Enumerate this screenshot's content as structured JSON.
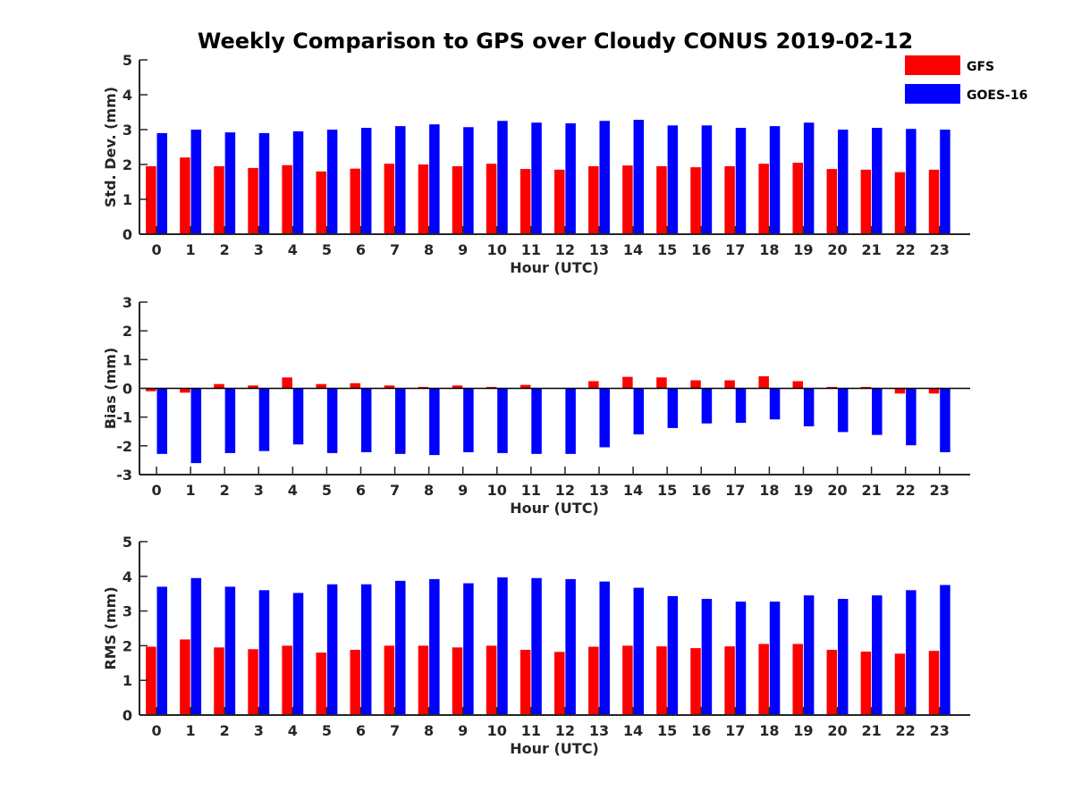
{
  "title": "Weekly Comparison to GPS over Cloudy CONUS 2019-02-12",
  "legend": [
    {
      "name": "GFS",
      "color": "#ff0000"
    },
    {
      "name": "GOES-16",
      "color": "#0000ff"
    }
  ],
  "chart_data": [
    {
      "type": "bar",
      "ylabel": "Std. Dev. (mm)",
      "xlabel": "Hour (UTC)",
      "ylim": [
        0,
        5
      ],
      "yticks": [
        0,
        1,
        2,
        3,
        4,
        5
      ],
      "categories": [
        "0",
        "1",
        "2",
        "3",
        "4",
        "5",
        "6",
        "7",
        "8",
        "9",
        "10",
        "11",
        "12",
        "13",
        "14",
        "15",
        "16",
        "17",
        "18",
        "19",
        "20",
        "21",
        "22",
        "23"
      ],
      "series": [
        {
          "name": "GFS",
          "color": "#ff0000",
          "values": [
            1.95,
            2.2,
            1.95,
            1.9,
            1.98,
            1.8,
            1.88,
            2.02,
            2.0,
            1.95,
            2.02,
            1.87,
            1.85,
            1.95,
            1.97,
            1.95,
            1.92,
            1.95,
            2.02,
            2.05,
            1.87,
            1.85,
            1.78,
            1.85
          ]
        },
        {
          "name": "GOES-16",
          "color": "#0000ff",
          "values": [
            2.9,
            3.0,
            2.92,
            2.9,
            2.95,
            3.0,
            3.05,
            3.1,
            3.15,
            3.07,
            3.25,
            3.2,
            3.18,
            3.25,
            3.28,
            3.12,
            3.12,
            3.05,
            3.1,
            3.2,
            3.0,
            3.05,
            3.02,
            3.0
          ]
        }
      ]
    },
    {
      "type": "bar",
      "ylabel": "Bias (mm)",
      "xlabel": "Hour (UTC)",
      "ylim": [
        -3,
        3
      ],
      "yticks": [
        -3,
        -2,
        -1,
        0,
        1,
        2,
        3
      ],
      "categories": [
        "0",
        "1",
        "2",
        "3",
        "4",
        "5",
        "6",
        "7",
        "8",
        "9",
        "10",
        "11",
        "12",
        "13",
        "14",
        "15",
        "16",
        "17",
        "18",
        "19",
        "20",
        "21",
        "22",
        "23"
      ],
      "series": [
        {
          "name": "GFS",
          "color": "#ff0000",
          "values": [
            -0.1,
            -0.15,
            0.15,
            0.1,
            0.38,
            0.15,
            0.18,
            0.1,
            0.05,
            0.1,
            0.05,
            0.12,
            0.0,
            0.25,
            0.4,
            0.38,
            0.28,
            0.28,
            0.42,
            0.25,
            0.05,
            0.05,
            -0.18,
            -0.18
          ]
        },
        {
          "name": "GOES-16",
          "color": "#0000ff",
          "values": [
            -2.28,
            -2.6,
            -2.25,
            -2.18,
            -1.95,
            -2.25,
            -2.22,
            -2.28,
            -2.32,
            -2.22,
            -2.25,
            -2.28,
            -2.28,
            -2.05,
            -1.6,
            -1.38,
            -1.22,
            -1.2,
            -1.08,
            -1.32,
            -1.52,
            -1.62,
            -1.98,
            -2.22
          ]
        }
      ]
    },
    {
      "type": "bar",
      "ylabel": "RMS (mm)",
      "xlabel": "Hour (UTC)",
      "ylim": [
        0,
        5
      ],
      "yticks": [
        0,
        1,
        2,
        3,
        4,
        5
      ],
      "categories": [
        "0",
        "1",
        "2",
        "3",
        "4",
        "5",
        "6",
        "7",
        "8",
        "9",
        "10",
        "11",
        "12",
        "13",
        "14",
        "15",
        "16",
        "17",
        "18",
        "19",
        "20",
        "21",
        "22",
        "23"
      ],
      "series": [
        {
          "name": "GFS",
          "color": "#ff0000",
          "values": [
            1.97,
            2.18,
            1.95,
            1.9,
            2.0,
            1.8,
            1.88,
            2.0,
            2.0,
            1.95,
            2.0,
            1.88,
            1.82,
            1.97,
            2.0,
            1.98,
            1.93,
            1.98,
            2.05,
            2.05,
            1.88,
            1.83,
            1.77,
            1.85
          ]
        },
        {
          "name": "GOES-16",
          "color": "#0000ff",
          "values": [
            3.7,
            3.95,
            3.7,
            3.6,
            3.52,
            3.77,
            3.77,
            3.87,
            3.92,
            3.8,
            3.97,
            3.95,
            3.92,
            3.85,
            3.67,
            3.43,
            3.35,
            3.27,
            3.27,
            3.45,
            3.35,
            3.45,
            3.6,
            3.75
          ]
        }
      ]
    }
  ]
}
